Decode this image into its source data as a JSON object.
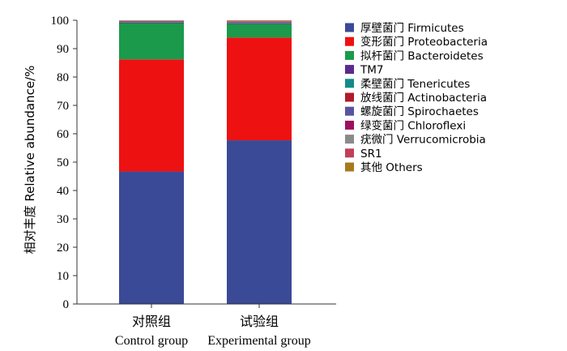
{
  "chart_data": {
    "type": "bar",
    "stacked": true,
    "ylabel": "相对丰度  Relative abundance/%",
    "ylim": [
      0,
      100
    ],
    "yticks": [
      "0",
      "10",
      "20",
      "30",
      "40",
      "50",
      "60",
      "70",
      "80",
      "90",
      "100"
    ],
    "categories": [
      {
        "zh": "对照组",
        "en": "Control group"
      },
      {
        "zh": "试验组",
        "en": "Experimental group"
      }
    ],
    "series": [
      {
        "name": "厚壁菌门  Firmicutes",
        "color": "#3a4a96",
        "values": [
          46.7,
          57.7
        ]
      },
      {
        "name": "变形菌门  Proteobacteria",
        "color": "#ee1111",
        "values": [
          39.5,
          36.2
        ]
      },
      {
        "name": "拟杆菌门  Bacteroidetes",
        "color": "#1a9a4a",
        "values": [
          12.8,
          4.8
        ]
      },
      {
        "name": "TM7",
        "color": "#5b2a8c",
        "values": [
          0.2,
          0.2
        ]
      },
      {
        "name": "柔壁菌门  Tenericutes",
        "color": "#138a8a",
        "values": [
          0.1,
          0.1
        ]
      },
      {
        "name": "放线菌门  Actinobacteria",
        "color": "#b11a2a",
        "values": [
          0.1,
          0.1
        ]
      },
      {
        "name": "螺旋菌门  Spirochaetes",
        "color": "#5a52a0",
        "values": [
          0.2,
          0.3
        ]
      },
      {
        "name": "绿变菌门  Chloroflexi",
        "color": "#9c1060",
        "values": [
          0.1,
          0.1
        ]
      },
      {
        "name": "疣微门  Verrucomicrobia",
        "color": "#8a8a8a",
        "values": [
          0.1,
          0.1
        ]
      },
      {
        "name": "SR1",
        "color": "#c0405a",
        "values": [
          0.1,
          0.2
        ]
      },
      {
        "name": "其他  Others",
        "color": "#a8781e",
        "values": [
          0.1,
          0.2
        ]
      }
    ]
  }
}
